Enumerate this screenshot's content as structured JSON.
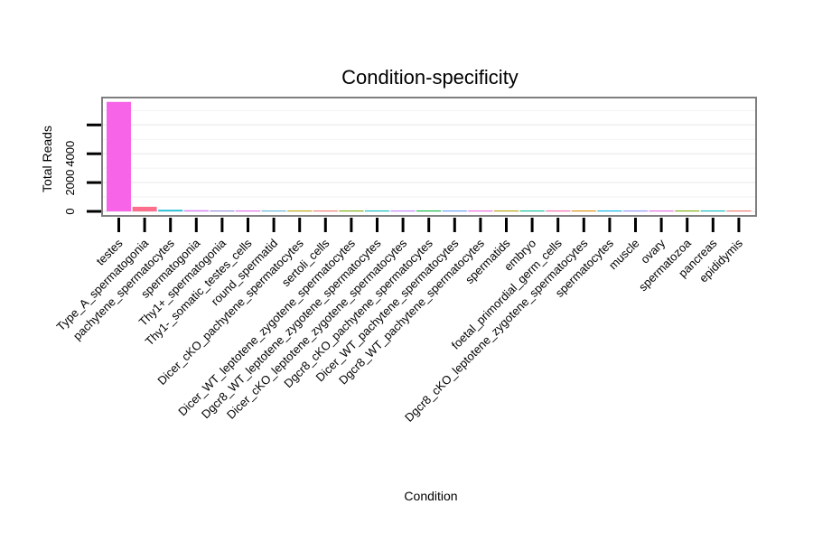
{
  "chart_data": {
    "type": "bar",
    "title": "Condition-specificity",
    "xlabel": "Condition",
    "ylabel": "Total Reads",
    "ylim": [
      0,
      7900
    ],
    "yticks": [
      0,
      2000,
      4000,
      6000
    ],
    "ytick_labels": [
      "0",
      "2000",
      "4000",
      ""
    ],
    "grid": true,
    "legend": "none",
    "categories": [
      "testes",
      "Type_A_spermatogonia",
      "pachytene_spermatocytes",
      "spermatogonia",
      "Thy1+_spermatogonia",
      "Thy1-_somatic_testes_cells",
      "round_spermatid",
      "Dicer_cKO_pachytene_spermatocytes",
      "sertoli_cells",
      "Dicer_WT_leptotene_zygotene_spermatocytes",
      "Dgcr8_WT_leptotene_zygotene_spermatocytes",
      "Dicer_cKO_leptotene_zygotene_spermatocytes",
      "Dgcr8_cKO_pachytene_spermatocytes",
      "Dicer_WT_pachytene_spermatocytes",
      "Dgcr8_WT_pachytene_spermatocytes",
      "spermatids",
      "embryo",
      "foetal_primordial_germ_cells",
      "Dgcr8_cKO_leptotene_zygotene_spermatocytes",
      "spermatocytes",
      "muscle",
      "ovary",
      "spermatozoa",
      "pancreas",
      "epididymis"
    ],
    "values": [
      7600,
      320,
      110,
      80,
      50,
      40,
      30,
      20,
      8,
      5,
      5,
      4,
      3,
      3,
      2,
      2,
      2,
      1,
      1,
      1,
      1,
      1,
      1,
      1,
      1
    ],
    "colors": [
      "#f864e8",
      "#fb6f8d",
      "#1dbcd8",
      "#d779f5",
      "#8e8be0",
      "#e76bf3",
      "#56b7d9",
      "#c0a500",
      "#f8766d",
      "#7cae00",
      "#00bfc4",
      "#c77cff",
      "#00ba38",
      "#619cff",
      "#f564e3",
      "#b79f00",
      "#00c19a",
      "#ff64b0",
      "#de8c00",
      "#00b4f0",
      "#9590ff",
      "#ef67eb",
      "#7cae00",
      "#00bfc4",
      "#f8766d"
    ],
    "panel_border_color": "#7f7f7f",
    "grid_color": "#f2f2f2"
  }
}
